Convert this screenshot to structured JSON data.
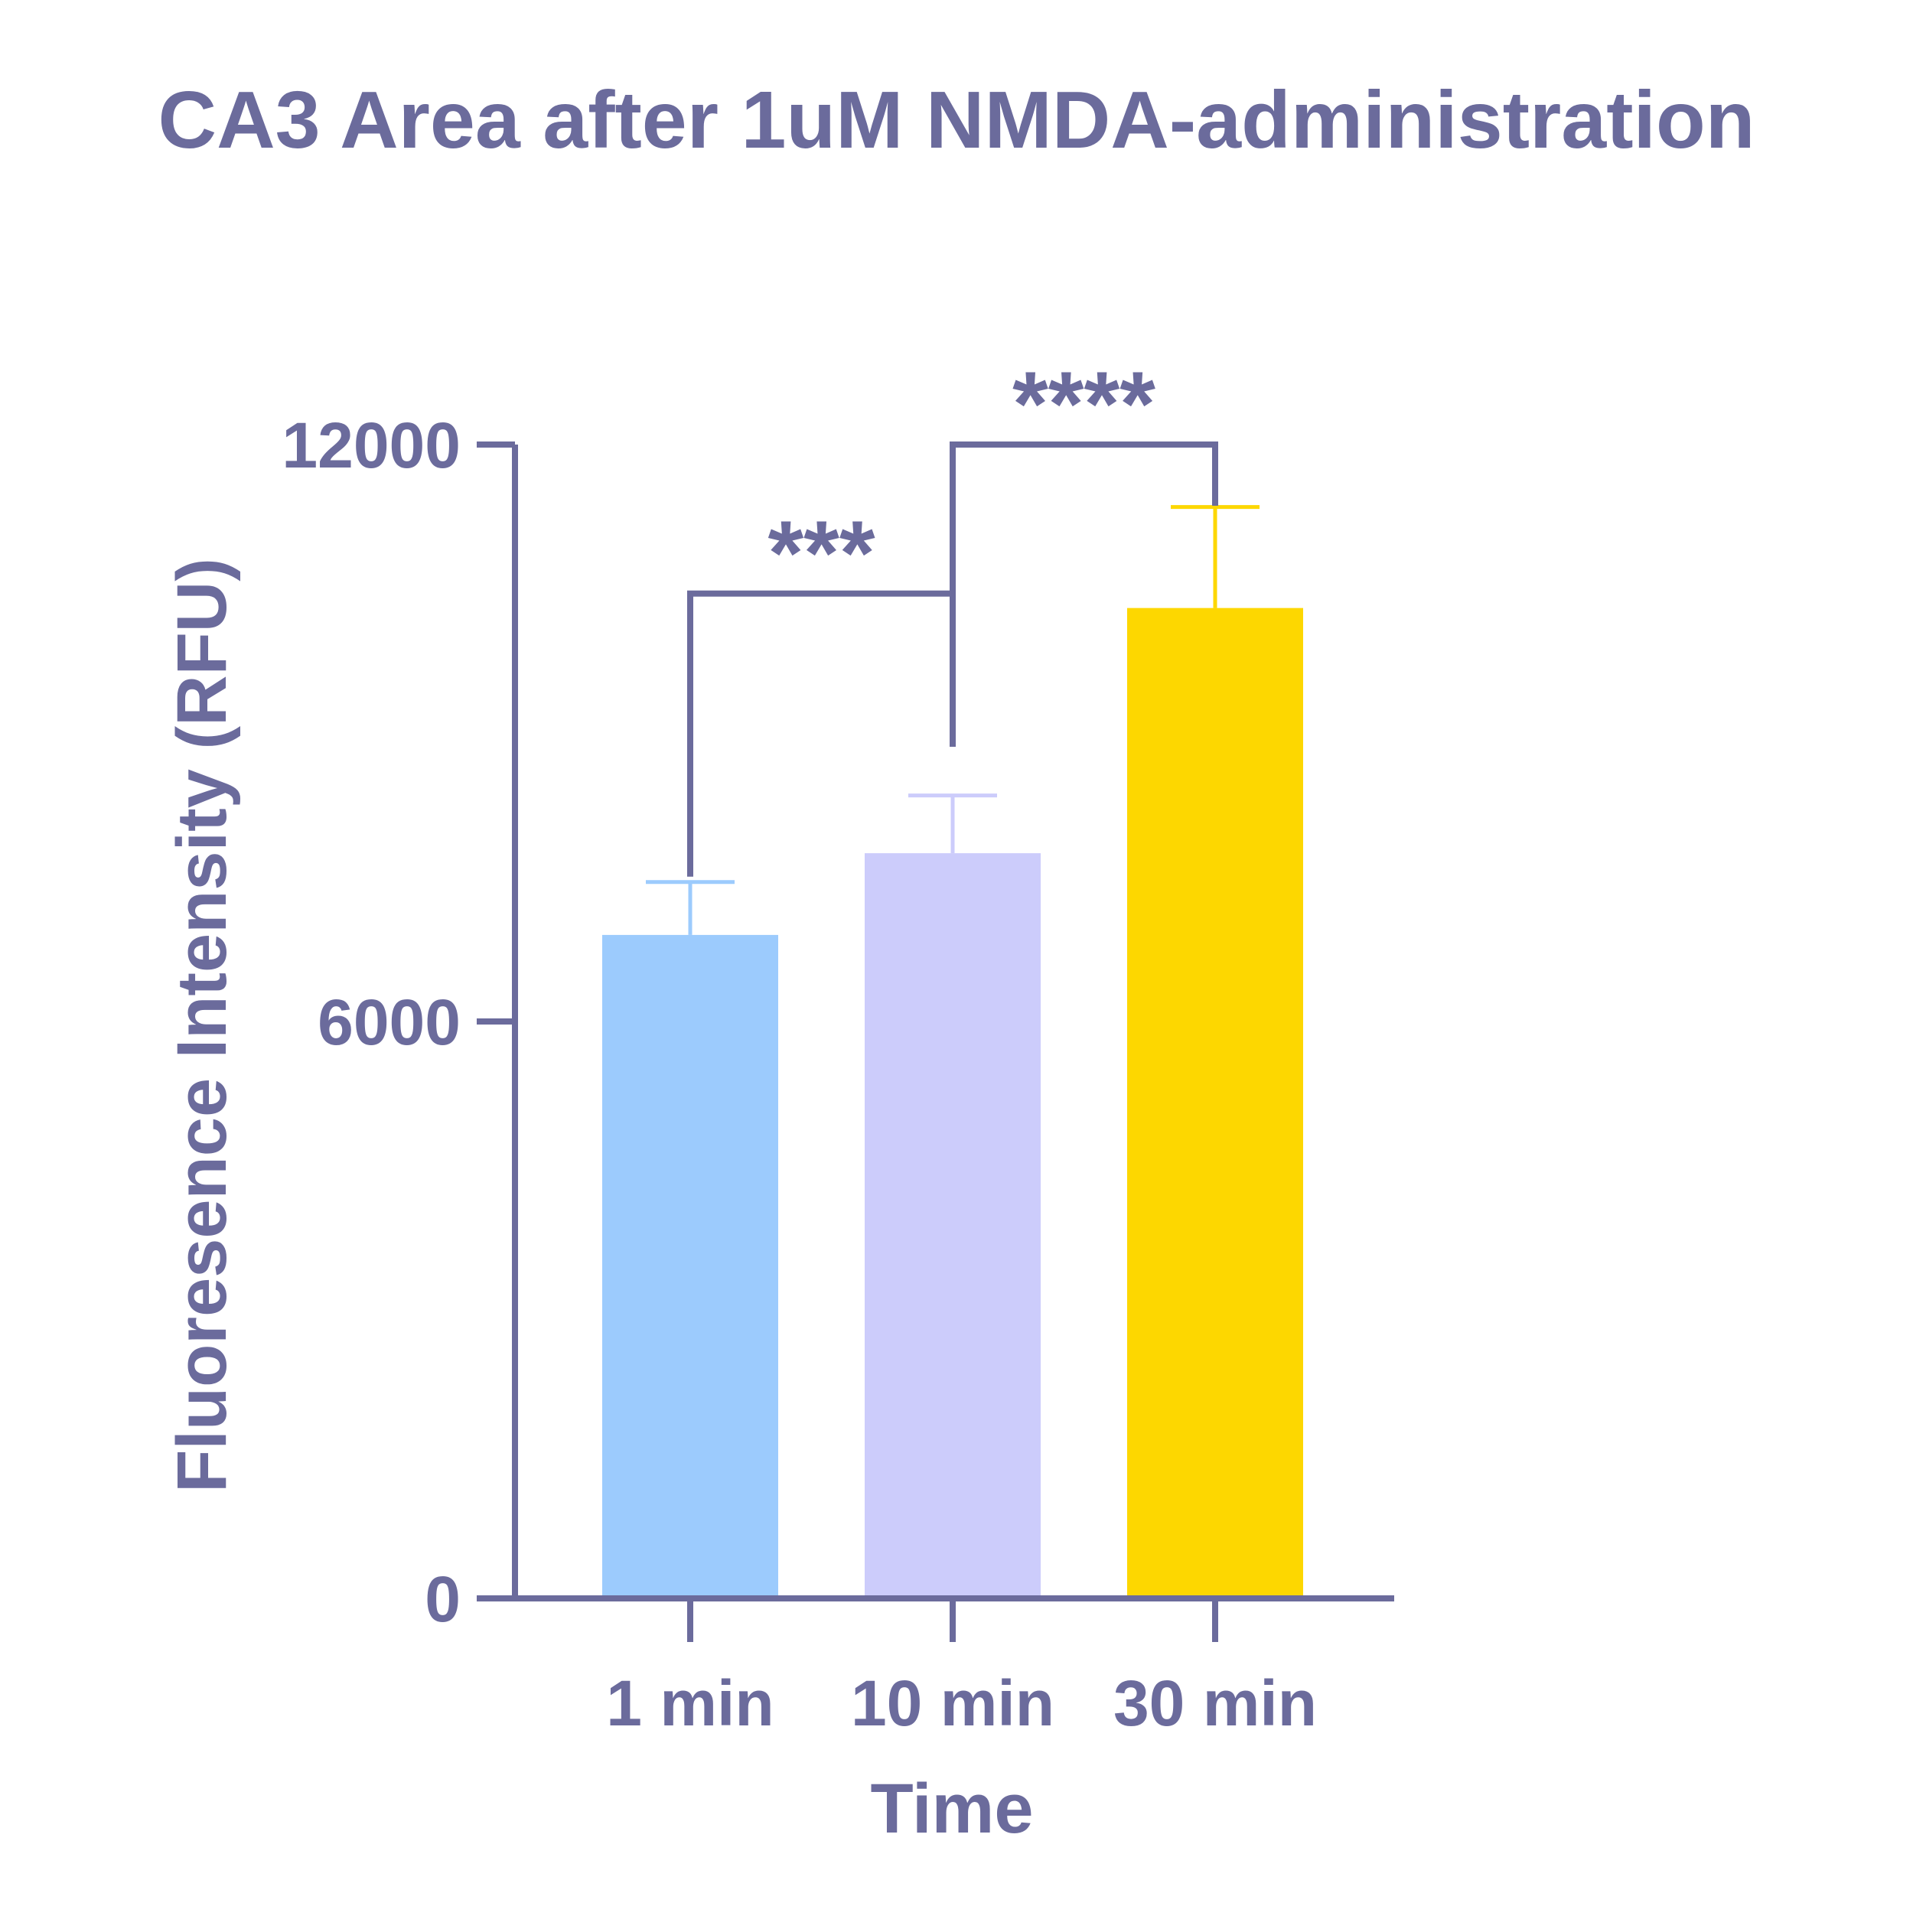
{
  "chart_data": {
    "type": "bar",
    "title": "CA3 Area after 1uM NMDA-administration",
    "xlabel": "Time",
    "ylabel": "Fluoresence Intensity (RFU)",
    "categories": [
      "1 min",
      "10 min",
      "30 min"
    ],
    "values": [
      6900,
      7750,
      10300
    ],
    "errors": [
      550,
      600,
      1050
    ],
    "bar_colors": [
      "#9CCBFD",
      "#CCCCFB",
      "#FDD700"
    ],
    "axis_color": "#6B6B9C",
    "ylim": [
      0,
      12000
    ],
    "yticks": [
      "0",
      "6000",
      "12000"
    ],
    "grid": false,
    "significance": [
      {
        "from": 0,
        "to": 1,
        "label": "***",
        "level": 10450
      },
      {
        "from": 1,
        "to": 2,
        "label": "****",
        "level": 12000
      }
    ]
  }
}
